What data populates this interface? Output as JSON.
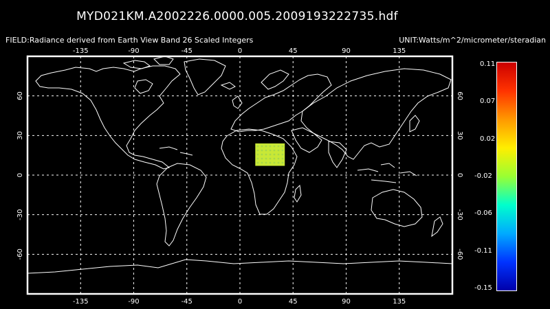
{
  "header": {
    "title": "MYD021KM.A2002226.0000.005.2009193222735.hdf",
    "field": "FIELD:Radiance derived from Earth View Band 26 Scaled Integers",
    "unit": "UNIT:Watts/m^2/micrometer/steradian"
  },
  "map": {
    "projection": "cylindrical",
    "lon_range": [
      -180,
      180
    ],
    "lat_range": [
      -90,
      90
    ],
    "lon_ticks": [
      -135,
      -90,
      -45,
      0,
      45,
      90,
      135
    ],
    "lon_tick_labels": [
      "-135",
      "-90",
      "-45",
      "0",
      "45",
      "90",
      "135"
    ],
    "lat_ticks": [
      60,
      30,
      0,
      -30,
      -60
    ],
    "lat_tick_labels": [
      "60",
      "30",
      "0",
      "-30",
      "-60"
    ],
    "grid": "dashed",
    "coastline_color": "#ffffff",
    "background_color": "#000000",
    "data_swath": {
      "lon_range": [
        13,
        38
      ],
      "lat_range": [
        7,
        24
      ],
      "dominant_color": "#c8e836"
    }
  },
  "colorbar": {
    "tick_labels": [
      "0.11",
      "0.07",
      "0.02",
      "-0.02",
      "-0.06",
      "-0.11",
      "-0.15"
    ],
    "range": [
      -0.15,
      0.11
    ],
    "colors": [
      "#cc0000",
      "#ff3300",
      "#ff9900",
      "#ffee00",
      "#99ff33",
      "#00ffcc",
      "#00aaff",
      "#0033ff",
      "#0000aa"
    ]
  }
}
